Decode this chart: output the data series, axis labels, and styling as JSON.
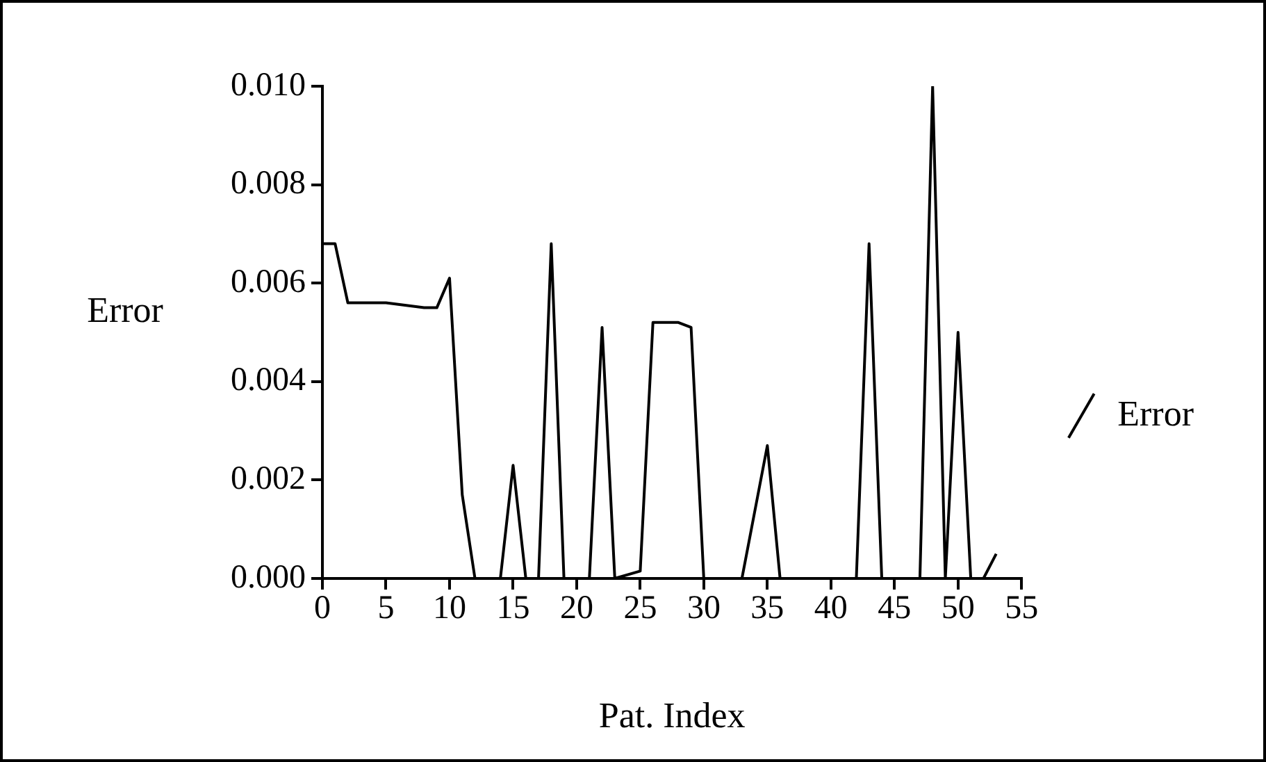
{
  "chart_data": {
    "type": "line",
    "xlabel": "Pat. Index",
    "ylabel": "Error",
    "legend": "right",
    "grid": false,
    "marker": "none",
    "line_style": "solid",
    "xlim": [
      0,
      55
    ],
    "xticks": [
      0,
      5,
      10,
      15,
      20,
      25,
      30,
      35,
      40,
      45,
      50,
      55
    ],
    "ylim": [
      0,
      0.01
    ],
    "yticks": [
      {
        "value": 0,
        "label": "0.000"
      },
      {
        "value": 0.002,
        "label": "0.002"
      },
      {
        "value": 0.004,
        "label": "0.004"
      },
      {
        "value": 0.006,
        "label": "0.006"
      },
      {
        "value": 0.008,
        "label": "0.008"
      },
      {
        "value": 0.01,
        "label": "0.010"
      }
    ],
    "series": [
      {
        "name": "Error",
        "color": "#000000",
        "x": [
          0,
          1,
          2,
          5,
          8,
          9,
          10,
          11,
          12,
          14,
          15,
          16,
          17,
          18,
          19,
          21,
          22,
          23,
          25,
          26,
          28,
          29,
          30,
          33,
          35,
          36,
          42,
          43,
          44,
          47,
          48,
          49,
          50,
          51,
          52,
          53
        ],
        "values": [
          0.0068,
          0.0068,
          0.0056,
          0.0056,
          0.0055,
          0.0055,
          0.0061,
          0.0017,
          0,
          0,
          0.0023,
          0,
          0,
          0.0068,
          0,
          0,
          0.0051,
          0,
          0.00015,
          0.0052,
          0.0052,
          0.0051,
          0,
          0,
          0.0027,
          0,
          0,
          0.0068,
          0,
          0,
          0.01,
          0,
          0.005,
          0,
          0,
          0.0005
        ]
      }
    ]
  }
}
